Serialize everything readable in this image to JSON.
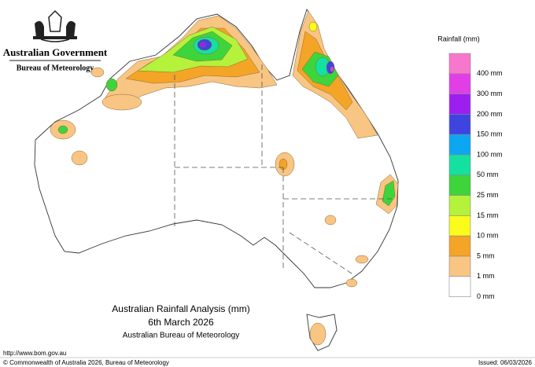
{
  "header": {
    "government": "Australian Government",
    "agency": "Bureau of Meteorology"
  },
  "map": {
    "title": "Australian Rainfall Analysis (mm)",
    "date": "6th March 2026",
    "credit": "Australian Bureau of Meteorology"
  },
  "legend": {
    "title": "Rainfall (mm)",
    "items": [
      {
        "label": "400 mm",
        "color": "#f777cc"
      },
      {
        "label": "300 mm",
        "color": "#e23ee6"
      },
      {
        "label": "200 mm",
        "color": "#9c1ff0"
      },
      {
        "label": "150 mm",
        "color": "#3f44e0"
      },
      {
        "label": "100 mm",
        "color": "#0da6f2"
      },
      {
        "label": "50 mm",
        "color": "#14e0a0"
      },
      {
        "label": "25 mm",
        "color": "#3ed43b"
      },
      {
        "label": "15 mm",
        "color": "#b4f23c"
      },
      {
        "label": "10 mm",
        "color": "#fbfb1c"
      },
      {
        "label": "5 mm",
        "color": "#f4a426"
      },
      {
        "label": "1 mm",
        "color": "#f8c583"
      },
      {
        "label": "0 mm",
        "color": "#ffffff"
      }
    ]
  },
  "footer": {
    "url": "http://www.bom.gov.au",
    "copyright": "© Commonwealth of Australia 2026, Bureau of Meteorology",
    "issued": "Issued: 06/03/2026"
  }
}
